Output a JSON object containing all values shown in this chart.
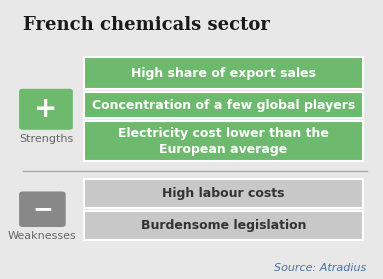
{
  "title": "French chemicals sector",
  "background_color": "#e8e8e8",
  "strengths_color": "#6db96d",
  "weaknesses_color": "#c8c8c8",
  "strengths_label": "Strengths",
  "weaknesses_label": "Weaknesses",
  "strengths_items": [
    "High share of export sales",
    "Concentration of a few global players",
    "Electricity cost lower than the\nEuropean average"
  ],
  "weaknesses_items": [
    "High labour costs",
    "Burdensome legislation"
  ],
  "source_text": "Source: Atradius",
  "title_fontsize": 13,
  "item_fontsize": 9,
  "label_fontsize": 8,
  "source_fontsize": 8,
  "plus_color": "#6db96d",
  "minus_color": "#888888",
  "icon_text_color": "#ffffff",
  "item_text_color": "#ffffff",
  "weakness_text_color": "#333333",
  "divider_color": "#aaaaaa",
  "label_color": "#666666"
}
